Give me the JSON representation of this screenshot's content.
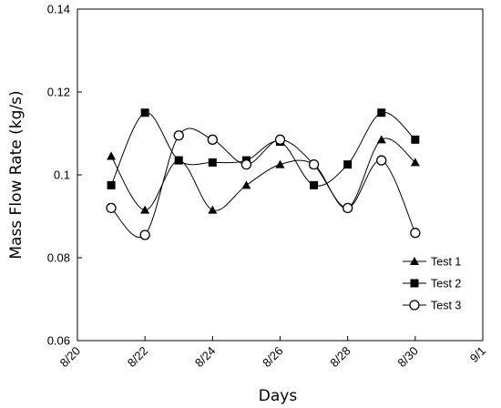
{
  "chart_data": {
    "type": "line",
    "xlabel": "Days",
    "ylabel": "Mass Flow Rate (kg/s)",
    "x_tick_labels": [
      "8/20",
      "8/22",
      "8/24",
      "8/26",
      "8/28",
      "8/30",
      "9/1"
    ],
    "y_tick_labels": [
      "0.06",
      "0.08",
      "0.1",
      "0.12",
      "0.14"
    ],
    "x_ticks": [
      20,
      22,
      24,
      26,
      28,
      30,
      32
    ],
    "y_ticks": [
      0.06,
      0.08,
      0.1,
      0.12,
      0.14
    ],
    "xlim": [
      20,
      32
    ],
    "ylim": [
      0.06,
      0.14
    ],
    "smooth": true,
    "grid": false,
    "legend_position": "bottom-right",
    "x": [
      21,
      22,
      23,
      24,
      25,
      26,
      27,
      28,
      29,
      30
    ],
    "series": [
      {
        "name": "Test 1",
        "marker": "triangle",
        "color": "#000000",
        "values": [
          0.1045,
          0.0915,
          0.1035,
          0.0915,
          0.0975,
          0.1025,
          0.1025,
          0.092,
          0.1085,
          0.103
        ]
      },
      {
        "name": "Test 2",
        "marker": "square",
        "color": "#000000",
        "values": [
          0.0975,
          0.115,
          0.1035,
          0.103,
          0.1035,
          0.108,
          0.0975,
          0.1025,
          0.115,
          0.1085
        ]
      },
      {
        "name": "Test 3",
        "marker": "circle-open",
        "color": "#000000",
        "values": [
          0.092,
          0.0855,
          0.1095,
          0.1085,
          0.1025,
          0.1085,
          0.1025,
          0.092,
          0.1035,
          0.086
        ]
      }
    ]
  }
}
